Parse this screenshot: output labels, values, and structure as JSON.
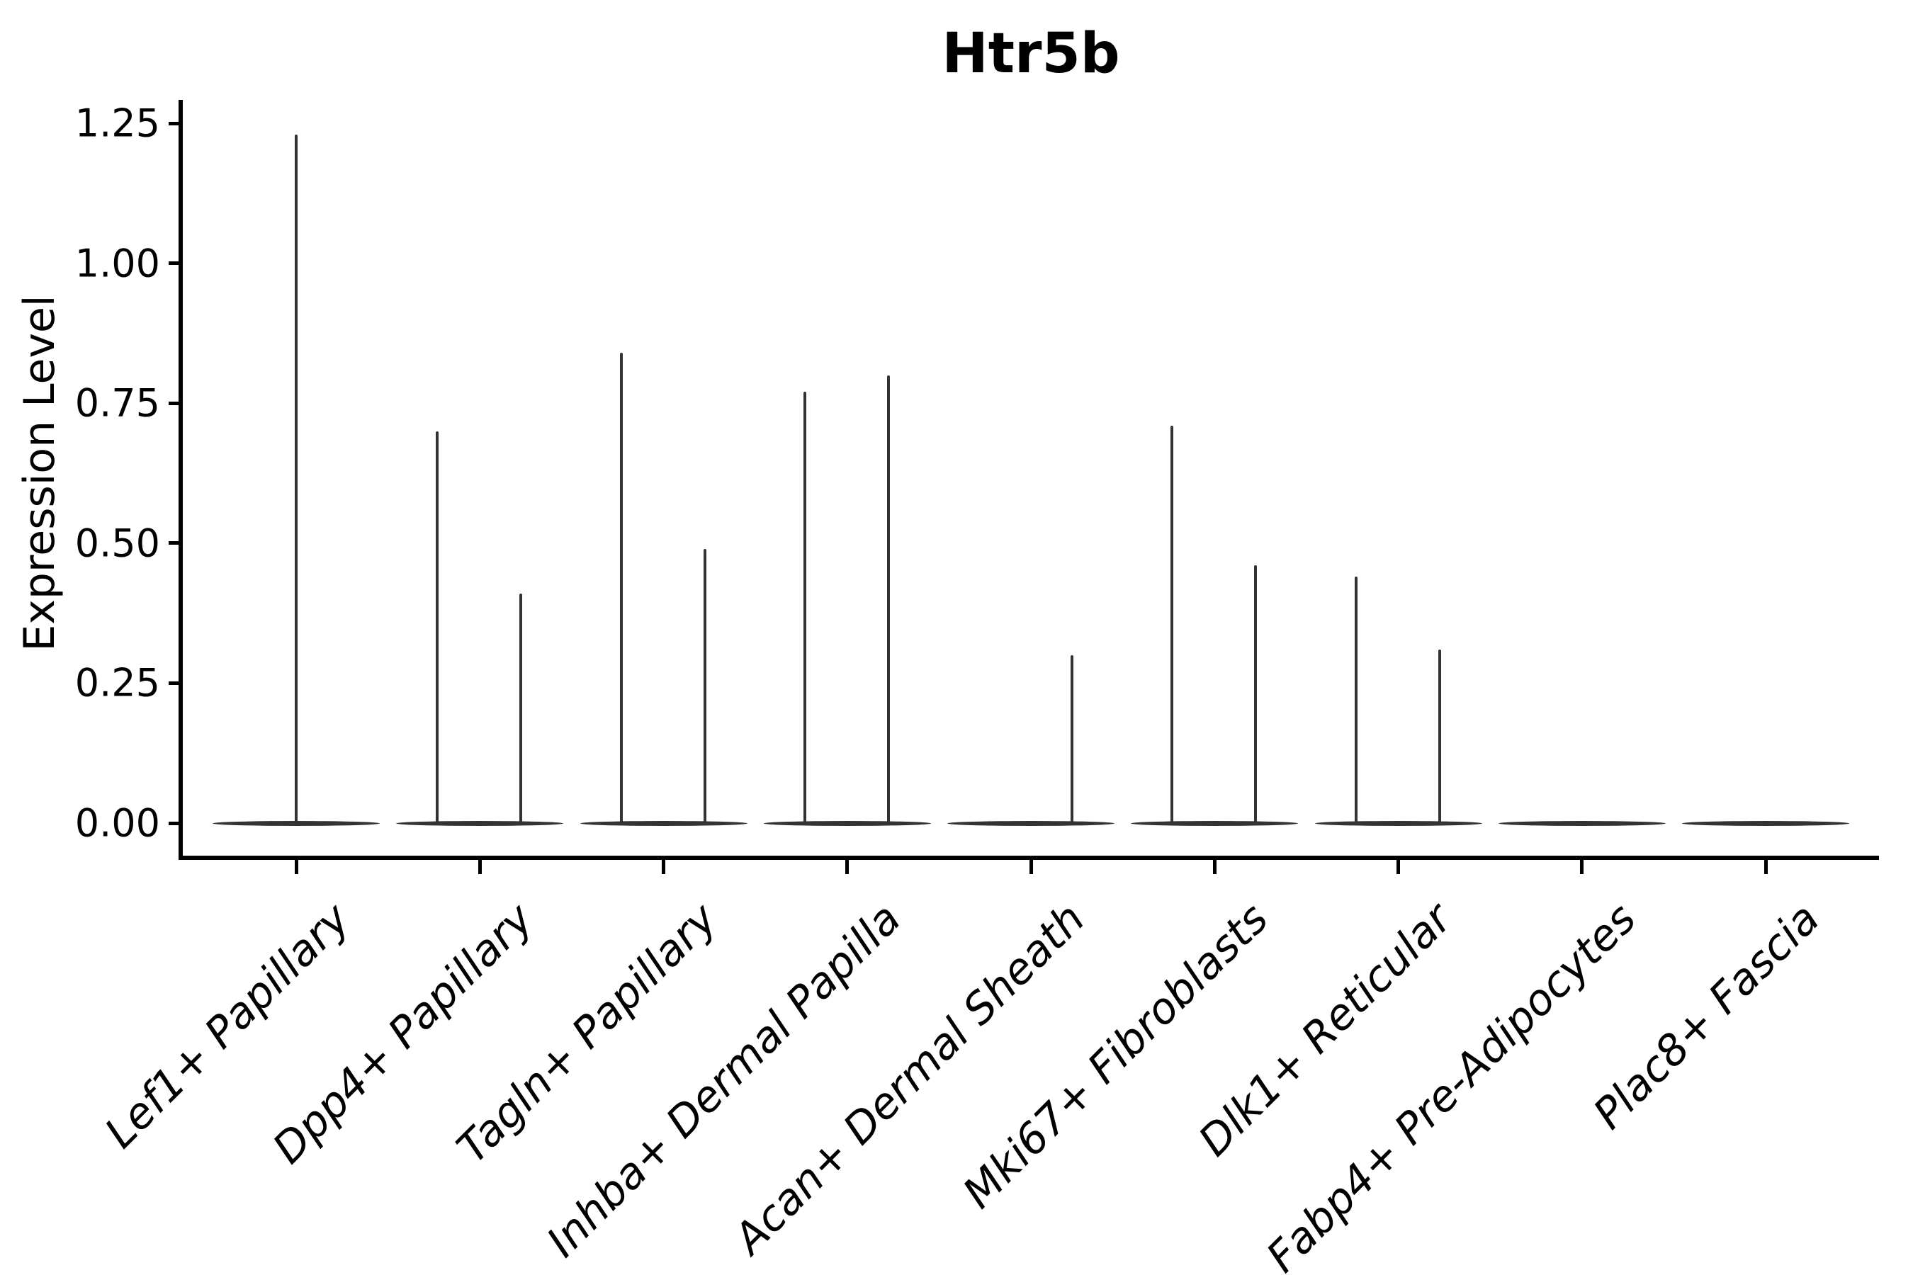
{
  "title": "Htr5b",
  "ylabel": "Expression Level",
  "chart_data": {
    "type": "violin",
    "title": "Htr5b",
    "xlabel": "",
    "ylabel": "Expression Level",
    "ylim": [
      0,
      1.29
    ],
    "grid": false,
    "legend": null,
    "ytick_labels": [
      "0.00",
      "0.25",
      "0.50",
      "0.75",
      "1.00",
      "1.25"
    ],
    "ytick_values": [
      0.0,
      0.25,
      0.5,
      0.75,
      1.0,
      1.25
    ],
    "categories": [
      "Lef1+ Papillary",
      "Dpp4+ Papillary",
      "Tagln+ Papillary",
      "Inhba+ Dermal Papilla",
      "Acan+ Dermal Sheath",
      "Mki67+ Fibroblasts",
      "Dlk1+ Reticular",
      "Fabp4+ Pre-Adipocytes",
      "Plac8+ Fascia"
    ],
    "violin_color": "#333333",
    "axis_color": "#000000",
    "style": "violins collapsed flat at expression 0 with thin vertical density spikes rising to the maximum expression value; no fill color",
    "violins": [
      {
        "category": "Lef1+ Papillary",
        "spikes": [
          {
            "position": "center",
            "max": 1.23
          }
        ]
      },
      {
        "category": "Dpp4+ Papillary",
        "spikes": [
          {
            "position": "left",
            "max": 0.7
          },
          {
            "position": "right",
            "max": 0.41
          }
        ]
      },
      {
        "category": "Tagln+ Papillary",
        "spikes": [
          {
            "position": "left",
            "max": 0.84
          },
          {
            "position": "right",
            "max": 0.49
          }
        ]
      },
      {
        "category": "Inhba+ Dermal Papilla",
        "spikes": [
          {
            "position": "left",
            "max": 0.77
          },
          {
            "position": "right",
            "max": 0.8
          }
        ]
      },
      {
        "category": "Acan+ Dermal Sheath",
        "spikes": [
          {
            "position": "right",
            "max": 0.3
          }
        ]
      },
      {
        "category": "Mki67+ Fibroblasts",
        "spikes": [
          {
            "position": "left",
            "max": 0.71
          },
          {
            "position": "right",
            "max": 0.46
          }
        ]
      },
      {
        "category": "Dlk1+ Reticular",
        "spikes": [
          {
            "position": "left",
            "max": 0.44
          },
          {
            "position": "right",
            "max": 0.31
          }
        ]
      },
      {
        "category": "Fabp4+ Pre-Adipocytes",
        "spikes": []
      },
      {
        "category": "Plac8+ Fascia",
        "spikes": []
      }
    ]
  }
}
